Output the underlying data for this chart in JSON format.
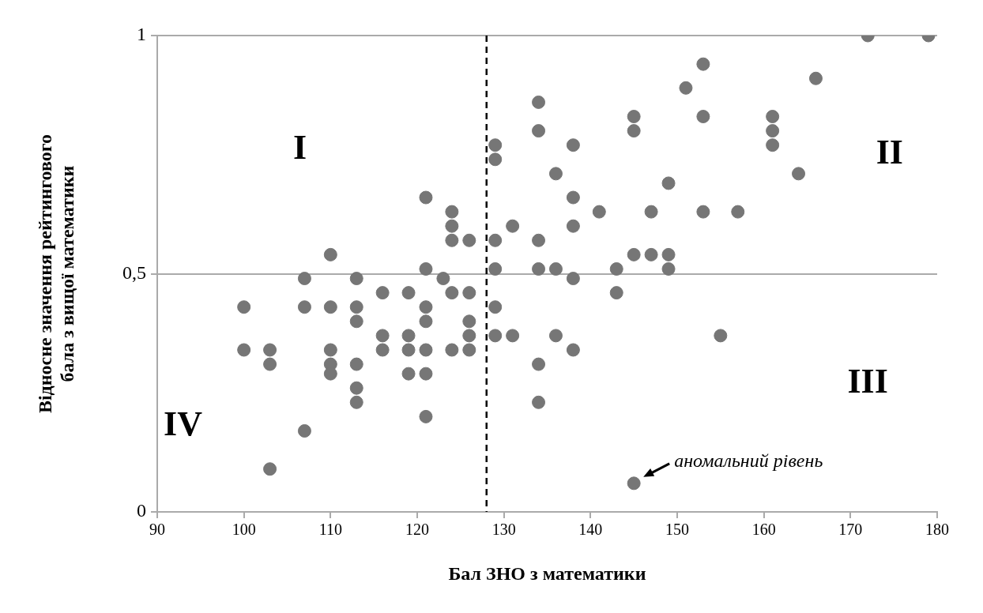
{
  "chart_data": {
    "type": "scatter",
    "xlabel": "Бал ЗНО з математики",
    "ylabel": "Відносне значення рейтингового\nбала з вищої математики",
    "x": [
      100,
      100,
      103,
      103,
      103,
      107,
      107,
      107,
      110,
      110,
      110,
      110,
      110,
      113,
      113,
      113,
      113,
      113,
      113,
      116,
      116,
      116,
      119,
      119,
      119,
      119,
      121,
      121,
      121,
      121,
      121,
      121,
      121,
      123,
      124,
      124,
      124,
      124,
      124,
      126,
      126,
      126,
      126,
      126,
      129,
      129,
      129,
      129,
      129,
      129,
      131,
      131,
      134,
      134,
      134,
      134,
      134,
      134,
      136,
      136,
      136,
      138,
      138,
      138,
      138,
      138,
      141,
      143,
      143,
      145,
      145,
      145,
      145,
      147,
      147,
      149,
      149,
      149,
      151,
      153,
      153,
      153,
      155,
      157,
      161,
      161,
      161,
      164,
      166,
      172,
      179
    ],
    "values": [
      0.43,
      0.34,
      0.34,
      0.31,
      0.09,
      0.49,
      0.43,
      0.17,
      0.54,
      0.43,
      0.34,
      0.31,
      0.29,
      0.49,
      0.43,
      0.4,
      0.31,
      0.26,
      0.23,
      0.46,
      0.37,
      0.34,
      0.46,
      0.37,
      0.34,
      0.29,
      0.66,
      0.51,
      0.43,
      0.4,
      0.34,
      0.29,
      0.2,
      0.49,
      0.63,
      0.6,
      0.57,
      0.46,
      0.34,
      0.57,
      0.46,
      0.4,
      0.37,
      0.34,
      0.77,
      0.74,
      0.57,
      0.51,
      0.43,
      0.37,
      0.6,
      0.37,
      0.86,
      0.8,
      0.57,
      0.51,
      0.31,
      0.23,
      0.71,
      0.51,
      0.37,
      0.77,
      0.66,
      0.6,
      0.49,
      0.34,
      0.63,
      0.51,
      0.46,
      0.83,
      0.8,
      0.54,
      0.06,
      0.63,
      0.54,
      0.69,
      0.54,
      0.51,
      0.89,
      0.94,
      0.83,
      0.63,
      0.37,
      0.63,
      0.83,
      0.8,
      0.77,
      0.71,
      0.91,
      1,
      1
    ],
    "color": "#767676",
    "marker": "circle",
    "xlim": [
      90,
      180
    ],
    "xticks": [
      90,
      100,
      110,
      120,
      130,
      140,
      150,
      160,
      170,
      180
    ],
    "ylim": [
      0,
      1
    ],
    "yticks": [
      0,
      {
        "value": 0.5,
        "label": "0,5"
      },
      1
    ],
    "grid": "y",
    "legend": false,
    "ref_lines": [
      {
        "axis": "x",
        "value": 128,
        "color": "#000000",
        "line_style": "dashed"
      }
    ],
    "annotations": [
      "I",
      "II",
      "III",
      "IV",
      {
        "text": "аномальний рівень",
        "x": 145,
        "y": 0.06
      }
    ]
  }
}
